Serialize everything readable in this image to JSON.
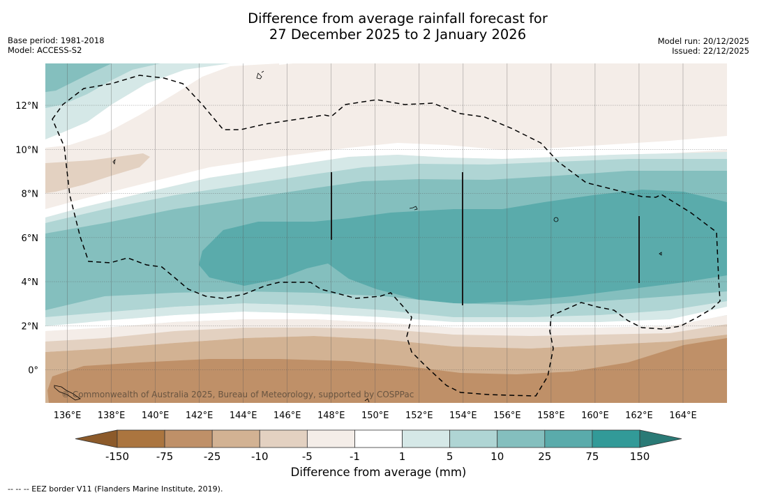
{
  "header": {
    "title_line1": "Difference from average rainfall forecast for",
    "title_line2": "27 December 2025 to 2 January 2026",
    "base_period": "Base period: 1981-2018",
    "model": "Model: ACCESS-S2",
    "model_run": "Model run: 20/12/2025",
    "issued": "Issued: 22/12/2025"
  },
  "map": {
    "extent": {
      "lon_min": 135.0,
      "lon_max": 166.0,
      "lat_min": -1.5,
      "lat_max": 13.9
    },
    "lon_ticks": [
      {
        "value": 136,
        "label": "136°E"
      },
      {
        "value": 138,
        "label": "138°E"
      },
      {
        "value": 140,
        "label": "140°E"
      },
      {
        "value": 142,
        "label": "142°E"
      },
      {
        "value": 144,
        "label": "144°E"
      },
      {
        "value": 146,
        "label": "146°E"
      },
      {
        "value": 148,
        "label": "148°E"
      },
      {
        "value": 150,
        "label": "150°E"
      },
      {
        "value": 152,
        "label": "152°E"
      },
      {
        "value": 154,
        "label": "154°E"
      },
      {
        "value": 156,
        "label": "156°E"
      },
      {
        "value": 158,
        "label": "158°E"
      },
      {
        "value": 160,
        "label": "160°E"
      },
      {
        "value": 162,
        "label": "162°E"
      },
      {
        "value": 164,
        "label": "164°E"
      }
    ],
    "lat_ticks": [
      {
        "value": 12,
        "label": "12°N"
      },
      {
        "value": 10,
        "label": "10°N"
      },
      {
        "value": 8,
        "label": "8°N"
      },
      {
        "value": 6,
        "label": "6°N"
      },
      {
        "value": 4,
        "label": "4°N"
      },
      {
        "value": 2,
        "label": "2°N"
      },
      {
        "value": 0,
        "label": "0°"
      }
    ],
    "credit": "© Commonwealth of Australia 2025, Bureau of Meteorology, supported by COSPPac"
  },
  "colorbar": {
    "title": "Difference from average (mm)",
    "tick_labels": [
      "-150",
      "-75",
      "-25",
      "-10",
      "-5",
      "-1",
      "1",
      "5",
      "10",
      "25",
      "75",
      "150"
    ],
    "under_color": "#8c5a2a",
    "over_color": "#2a7a76",
    "bins": [
      {
        "range": "-150 to -75",
        "color": "#ab753f"
      },
      {
        "range": "-75 to -25",
        "color": "#bf9068"
      },
      {
        "range": "-25 to -10",
        "color": "#d2b293"
      },
      {
        "range": "-10 to -5",
        "color": "#e3d1c1"
      },
      {
        "range": "-5 to -1",
        "color": "#f4ede8"
      },
      {
        "range": "-1 to 1",
        "color": "#ffffff"
      },
      {
        "range": "1 to 5",
        "color": "#d5e8e7"
      },
      {
        "range": "5 to 10",
        "color": "#afd5d4"
      },
      {
        "range": "10 to 25",
        "color": "#84bfbe"
      },
      {
        "range": "25 to 75",
        "color": "#5aabab"
      },
      {
        "range": "75 to 150",
        "color": "#329a98"
      }
    ]
  },
  "footnote": "--  --  -- EEZ border V11 (Flanders Marine Institute, 2019)."
}
